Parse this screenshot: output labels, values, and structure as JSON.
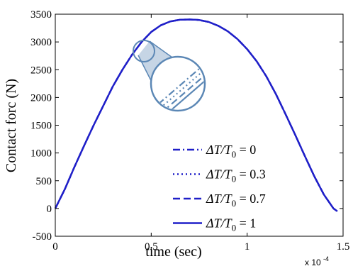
{
  "chart_data": {
    "type": "line",
    "xlabel": "time (sec)",
    "ylabel": "Contact forc (N)",
    "x_multiplier_label": "x 10",
    "x_multiplier_exponent": "-4",
    "xlim": [
      0,
      1.5
    ],
    "ylim": [
      -500,
      3500
    ],
    "xticks": [
      "0",
      "0.5",
      "1",
      "1.5"
    ],
    "yticks": [
      "-500",
      "0",
      "500",
      "1000",
      "1500",
      "2000",
      "2500",
      "3000",
      "3500"
    ],
    "grid": false,
    "legend_position": "bottom-right",
    "series": [
      {
        "name_symbol": "ΔT/T",
        "name_subscript": "0",
        "name_value": " = 0",
        "style": "dashdot",
        "x": [
          0,
          0.05,
          0.1,
          0.15,
          0.2,
          0.25,
          0.3,
          0.35,
          0.4,
          0.45,
          0.5,
          0.55,
          0.6,
          0.65,
          0.7,
          0.73,
          0.75,
          0.8,
          0.85,
          0.9,
          0.95,
          1.0,
          1.05,
          1.1,
          1.15,
          1.2,
          1.25,
          1.3,
          1.35,
          1.4,
          1.45,
          1.47
        ],
        "y": [
          0,
          350,
          750,
          1130,
          1500,
          1850,
          2200,
          2500,
          2770,
          3000,
          3180,
          3300,
          3370,
          3400,
          3405,
          3400,
          3395,
          3360,
          3290,
          3190,
          3050,
          2870,
          2650,
          2380,
          2060,
          1700,
          1330,
          950,
          580,
          250,
          0,
          -50
        ]
      },
      {
        "name_symbol": "ΔT/T",
        "name_subscript": "0",
        "name_value": " = 0.3",
        "style": "dotted",
        "x": [
          0,
          0.05,
          0.1,
          0.15,
          0.2,
          0.25,
          0.3,
          0.35,
          0.4,
          0.45,
          0.5,
          0.55,
          0.6,
          0.65,
          0.7,
          0.73,
          0.75,
          0.8,
          0.85,
          0.9,
          0.95,
          1.0,
          1.05,
          1.1,
          1.15,
          1.2,
          1.25,
          1.3,
          1.35,
          1.4,
          1.45,
          1.47
        ],
        "y": [
          0,
          350,
          750,
          1130,
          1500,
          1850,
          2200,
          2500,
          2770,
          3000,
          3180,
          3300,
          3370,
          3400,
          3405,
          3400,
          3395,
          3360,
          3290,
          3190,
          3050,
          2870,
          2650,
          2380,
          2060,
          1700,
          1330,
          950,
          580,
          250,
          0,
          -50
        ]
      },
      {
        "name_symbol": "ΔT/T",
        "name_subscript": "0",
        "name_value": " = 0.7",
        "style": "dashed",
        "x": [
          0,
          0.05,
          0.1,
          0.15,
          0.2,
          0.25,
          0.3,
          0.35,
          0.4,
          0.45,
          0.5,
          0.55,
          0.6,
          0.65,
          0.7,
          0.73,
          0.75,
          0.8,
          0.85,
          0.9,
          0.95,
          1.0,
          1.05,
          1.1,
          1.15,
          1.2,
          1.25,
          1.3,
          1.35,
          1.4,
          1.45,
          1.47
        ],
        "y": [
          0,
          350,
          750,
          1130,
          1500,
          1850,
          2200,
          2500,
          2770,
          3000,
          3180,
          3300,
          3370,
          3400,
          3405,
          3400,
          3395,
          3360,
          3290,
          3190,
          3050,
          2870,
          2650,
          2380,
          2060,
          1700,
          1330,
          950,
          580,
          250,
          0,
          -50
        ]
      },
      {
        "name_symbol": "ΔT/T",
        "name_subscript": "0",
        "name_value": " = 1",
        "style": "solid",
        "x": [
          0,
          0.05,
          0.1,
          0.15,
          0.2,
          0.25,
          0.3,
          0.35,
          0.4,
          0.45,
          0.5,
          0.55,
          0.6,
          0.65,
          0.7,
          0.73,
          0.75,
          0.8,
          0.85,
          0.9,
          0.95,
          1.0,
          1.05,
          1.1,
          1.15,
          1.2,
          1.25,
          1.3,
          1.35,
          1.4,
          1.45,
          1.47
        ],
        "y": [
          0,
          350,
          750,
          1130,
          1500,
          1850,
          2200,
          2500,
          2770,
          3000,
          3180,
          3300,
          3370,
          3400,
          3405,
          3400,
          3395,
          3360,
          3290,
          3190,
          3050,
          2870,
          2650,
          2380,
          2060,
          1700,
          1330,
          950,
          580,
          250,
          0,
          -50
        ]
      }
    ],
    "colors": {
      "line": "#1f1fc8",
      "inset": "#5b87b5",
      "axes": "#000000"
    }
  }
}
